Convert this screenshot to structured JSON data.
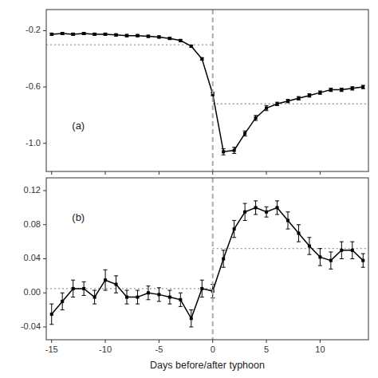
{
  "chart_data": [
    {
      "type": "line",
      "x": [
        -15,
        -14,
        -13,
        -12,
        -11,
        -10,
        -9,
        -8,
        -7,
        -6,
        -5,
        -4,
        -3,
        -2,
        -1,
        0,
        1,
        2,
        3,
        4,
        5,
        6,
        7,
        8,
        9,
        10,
        11,
        12,
        13,
        14
      ],
      "series": [
        {
          "color": "black",
          "marker": "square",
          "values": [
            -0.225,
            -0.22,
            -0.225,
            -0.22,
            -0.225,
            -0.225,
            -0.23,
            -0.235,
            -0.235,
            -0.24,
            -0.245,
            -0.255,
            -0.27,
            -0.31,
            -0.4,
            -0.65,
            -1.06,
            -1.05,
            -0.93,
            -0.82,
            -0.75,
            -0.72,
            -0.7,
            -0.68,
            -0.66,
            -0.64,
            -0.62,
            -0.62,
            -0.61,
            -0.6
          ],
          "errors": [
            0.008,
            0.008,
            0.008,
            0.008,
            0.008,
            0.008,
            0.008,
            0.008,
            0.008,
            0.008,
            0.008,
            0.008,
            0.008,
            0.008,
            0.008,
            0.012,
            0.022,
            0.022,
            0.018,
            0.018,
            0.018,
            0.012,
            0.012,
            0.012,
            0.012,
            0.012,
            0.012,
            0.012,
            0.012,
            0.012
          ]
        }
      ],
      "xlim": [
        -15.5,
        14.5
      ],
      "xticks": [
        -15,
        -10,
        -5,
        0,
        5,
        10
      ],
      "ylim": [
        -1.2,
        -0.05
      ],
      "yticks": [
        {
          "value": -1.0,
          "label": "-1.0"
        },
        -0.6,
        -0.2
      ],
      "tick_labels": "y",
      "grid": false,
      "hlines": [
        {
          "y": -0.3,
          "side": "before",
          "color": "#999999",
          "line_style": "dotted"
        },
        {
          "y": -0.72,
          "side": "after",
          "color": "#999999",
          "line_style": "dotted"
        }
      ],
      "vlines": [
        {
          "x": 0,
          "color": "#aaaaaa",
          "line_style": "dashed"
        }
      ],
      "annotations": [
        {
          "text": "(a)"
        }
      ]
    },
    {
      "type": "line",
      "x": [
        -15,
        -14,
        -13,
        -12,
        -11,
        -10,
        -9,
        -8,
        -7,
        -6,
        -5,
        -4,
        -3,
        -2,
        -1,
        0,
        1,
        2,
        3,
        4,
        5,
        6,
        7,
        8,
        9,
        10,
        11,
        12,
        13,
        14
      ],
      "series": [
        {
          "color": "black",
          "marker": "square",
          "values": [
            -0.025,
            -0.01,
            0.005,
            0.005,
            -0.005,
            0.015,
            0.01,
            -0.005,
            -0.005,
            0.0,
            -0.002,
            -0.005,
            -0.008,
            -0.03,
            0.005,
            0.002,
            0.04,
            0.075,
            0.095,
            0.1,
            0.095,
            0.1,
            0.085,
            0.07,
            0.055,
            0.042,
            0.038,
            0.05,
            0.05,
            0.038
          ],
          "errors": [
            0.012,
            0.01,
            0.01,
            0.008,
            0.008,
            0.012,
            0.01,
            0.008,
            0.008,
            0.008,
            0.008,
            0.008,
            0.008,
            0.01,
            0.01,
            0.008,
            0.01,
            0.01,
            0.01,
            0.008,
            0.006,
            0.008,
            0.01,
            0.01,
            0.01,
            0.01,
            0.01,
            0.01,
            0.01,
            0.008
          ]
        }
      ],
      "xlim": [
        -15.5,
        14.5
      ],
      "xticks": [
        -15,
        -10,
        -5,
        0,
        5,
        10
      ],
      "ylim": [
        -0.055,
        0.135
      ],
      "yticks": [
        -0.04,
        {
          "value": 0.0,
          "label": "0.00"
        },
        0.04,
        0.08,
        0.12
      ],
      "xlabel": "Days before/after typhoon",
      "grid": false,
      "hlines": [
        {
          "y": 0.005,
          "side": "before",
          "color": "#999999",
          "line_style": "dotted"
        },
        {
          "y": 0.052,
          "side": "after",
          "color": "#999999",
          "line_style": "dotted"
        }
      ],
      "vlines": [
        {
          "x": 0,
          "color": "#aaaaaa",
          "line_style": "dashed"
        }
      ],
      "annotations": [
        {
          "text": "(b)"
        }
      ]
    }
  ]
}
